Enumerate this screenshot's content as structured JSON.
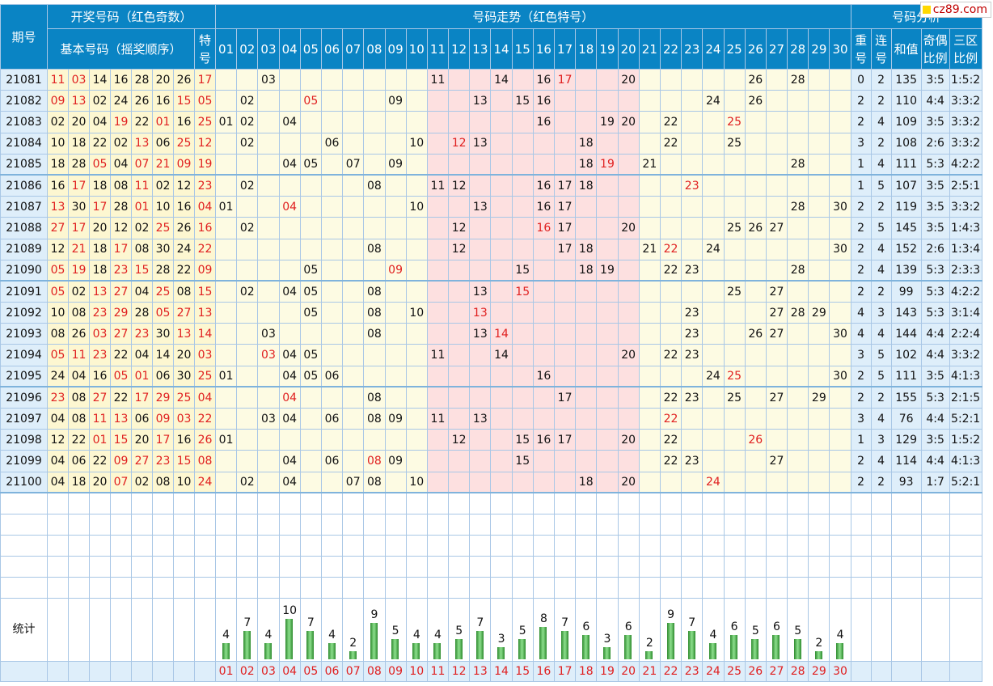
{
  "headers": {
    "period": "期号",
    "draw": "开奖号码（红色奇数）",
    "basic": "基本号码（摇奖顺序）",
    "special": "特号",
    "trend": "号码走势（红色特号）",
    "analysis": "号码分析",
    "repeat": "重号",
    "consecutive": "连号",
    "sum": "和值",
    "odd_even": "奇偶比例",
    "three_zone": "三区比例",
    "stat": "统计"
  },
  "logo": {
    "text": "cz89.com"
  },
  "colors": {
    "header_bg": "#0a84c4",
    "odd_red": "#e02020",
    "bar_green": "#3caa3c",
    "pink_band": "#fde0e0"
  },
  "numbers": [
    "01",
    "02",
    "03",
    "04",
    "05",
    "06",
    "07",
    "08",
    "09",
    "10",
    "11",
    "12",
    "13",
    "14",
    "15",
    "16",
    "17",
    "18",
    "19",
    "20",
    "21",
    "22",
    "23",
    "24",
    "25",
    "26",
    "27",
    "28",
    "29",
    "30"
  ],
  "rows": [
    {
      "period": "21081",
      "nums": [
        "11",
        "03",
        "14",
        "16",
        "28",
        "20",
        "26"
      ],
      "special": "17",
      "repeat": "0",
      "consec": "2",
      "sum": "135",
      "oe": "3:5",
      "zone": "1:5:2"
    },
    {
      "period": "21082",
      "nums": [
        "09",
        "13",
        "02",
        "24",
        "26",
        "16",
        "15"
      ],
      "special": "05",
      "repeat": "2",
      "consec": "2",
      "sum": "110",
      "oe": "4:4",
      "zone": "3:3:2"
    },
    {
      "period": "21083",
      "nums": [
        "02",
        "20",
        "04",
        "19",
        "22",
        "01",
        "16"
      ],
      "special": "25",
      "repeat": "2",
      "consec": "4",
      "sum": "109",
      "oe": "3:5",
      "zone": "3:3:2"
    },
    {
      "period": "21084",
      "nums": [
        "10",
        "18",
        "22",
        "02",
        "13",
        "06",
        "25"
      ],
      "special": "12",
      "repeat": "3",
      "consec": "2",
      "sum": "108",
      "oe": "2:6",
      "zone": "3:3:2"
    },
    {
      "period": "21085",
      "nums": [
        "18",
        "28",
        "05",
        "04",
        "07",
        "21",
        "09"
      ],
      "special": "19",
      "repeat": "1",
      "consec": "4",
      "sum": "111",
      "oe": "5:3",
      "zone": "4:2:2"
    },
    {
      "period": "21086",
      "nums": [
        "16",
        "17",
        "18",
        "08",
        "11",
        "02",
        "12"
      ],
      "special": "23",
      "repeat": "1",
      "consec": "5",
      "sum": "107",
      "oe": "3:5",
      "zone": "2:5:1"
    },
    {
      "period": "21087",
      "nums": [
        "13",
        "30",
        "17",
        "28",
        "01",
        "10",
        "16"
      ],
      "special": "04",
      "repeat": "2",
      "consec": "2",
      "sum": "119",
      "oe": "3:5",
      "zone": "3:3:2"
    },
    {
      "period": "21088",
      "nums": [
        "27",
        "17",
        "20",
        "12",
        "02",
        "25",
        "26"
      ],
      "special": "16",
      "repeat": "2",
      "consec": "5",
      "sum": "145",
      "oe": "3:5",
      "zone": "1:4:3"
    },
    {
      "period": "21089",
      "nums": [
        "12",
        "21",
        "18",
        "17",
        "08",
        "30",
        "24"
      ],
      "special": "22",
      "repeat": "2",
      "consec": "4",
      "sum": "152",
      "oe": "2:6",
      "zone": "1:3:4"
    },
    {
      "period": "21090",
      "nums": [
        "05",
        "19",
        "18",
        "23",
        "15",
        "28",
        "22"
      ],
      "special": "09",
      "repeat": "2",
      "consec": "4",
      "sum": "139",
      "oe": "5:3",
      "zone": "2:3:3"
    },
    {
      "period": "21091",
      "nums": [
        "05",
        "02",
        "13",
        "27",
        "04",
        "25",
        "08"
      ],
      "special": "15",
      "repeat": "2",
      "consec": "2",
      "sum": "99",
      "oe": "5:3",
      "zone": "4:2:2"
    },
    {
      "period": "21092",
      "nums": [
        "10",
        "08",
        "23",
        "29",
        "28",
        "05",
        "27"
      ],
      "special": "13",
      "repeat": "4",
      "consec": "3",
      "sum": "143",
      "oe": "5:3",
      "zone": "3:1:4"
    },
    {
      "period": "21093",
      "nums": [
        "08",
        "26",
        "03",
        "27",
        "23",
        "30",
        "13"
      ],
      "special": "14",
      "repeat": "4",
      "consec": "4",
      "sum": "144",
      "oe": "4:4",
      "zone": "2:2:4"
    },
    {
      "period": "21094",
      "nums": [
        "05",
        "11",
        "23",
        "22",
        "04",
        "14",
        "20"
      ],
      "special": "03",
      "repeat": "3",
      "consec": "5",
      "sum": "102",
      "oe": "4:4",
      "zone": "3:3:2"
    },
    {
      "period": "21095",
      "nums": [
        "24",
        "04",
        "16",
        "05",
        "01",
        "06",
        "30"
      ],
      "special": "25",
      "repeat": "2",
      "consec": "5",
      "sum": "111",
      "oe": "3:5",
      "zone": "4:1:3"
    },
    {
      "period": "21096",
      "nums": [
        "23",
        "08",
        "27",
        "22",
        "17",
        "29",
        "25"
      ],
      "special": "04",
      "repeat": "2",
      "consec": "2",
      "sum": "155",
      "oe": "5:3",
      "zone": "2:1:5"
    },
    {
      "period": "21097",
      "nums": [
        "04",
        "08",
        "11",
        "13",
        "06",
        "09",
        "03"
      ],
      "special": "22",
      "repeat": "3",
      "consec": "4",
      "sum": "76",
      "oe": "4:4",
      "zone": "5:2:1"
    },
    {
      "period": "21098",
      "nums": [
        "12",
        "22",
        "01",
        "15",
        "20",
        "17",
        "16"
      ],
      "special": "26",
      "repeat": "1",
      "consec": "3",
      "sum": "129",
      "oe": "3:5",
      "zone": "1:5:2"
    },
    {
      "period": "21099",
      "nums": [
        "04",
        "06",
        "22",
        "09",
        "27",
        "23",
        "15"
      ],
      "special": "08",
      "repeat": "2",
      "consec": "4",
      "sum": "114",
      "oe": "4:4",
      "zone": "4:1:3"
    },
    {
      "period": "21100",
      "nums": [
        "04",
        "18",
        "20",
        "07",
        "02",
        "08",
        "10"
      ],
      "special": "24",
      "repeat": "2",
      "consec": "2",
      "sum": "93",
      "oe": "1:7",
      "zone": "5:2:1"
    }
  ],
  "chart_data": {
    "type": "bar",
    "categories": [
      "01",
      "02",
      "03",
      "04",
      "05",
      "06",
      "07",
      "08",
      "09",
      "10",
      "11",
      "12",
      "13",
      "14",
      "15",
      "16",
      "17",
      "18",
      "19",
      "20",
      "21",
      "22",
      "23",
      "24",
      "25",
      "26",
      "27",
      "28",
      "29",
      "30"
    ],
    "values": [
      4,
      7,
      4,
      10,
      7,
      4,
      2,
      9,
      5,
      4,
      4,
      5,
      7,
      3,
      5,
      8,
      7,
      6,
      3,
      6,
      2,
      9,
      7,
      4,
      6,
      5,
      6,
      5,
      2,
      4
    ],
    "title": "统计",
    "xlabel": "",
    "ylabel": "",
    "ylim": [
      0,
      10
    ]
  }
}
